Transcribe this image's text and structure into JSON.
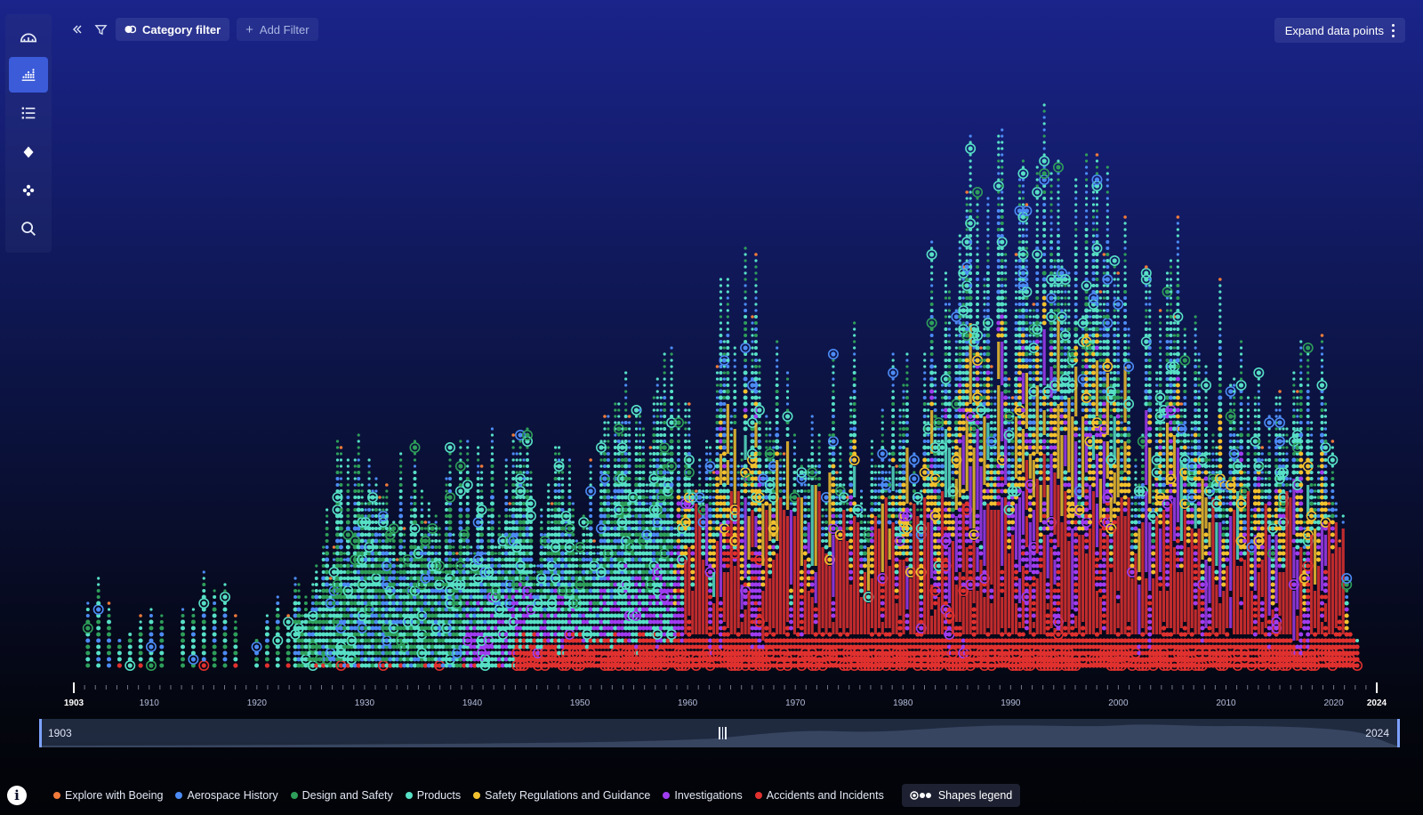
{
  "sidebar": {
    "items": [
      {
        "icon": "dashboard-gauge-icon",
        "name": "sidebar-item-overview",
        "active": false
      },
      {
        "icon": "chart-icon",
        "name": "sidebar-item-timeline",
        "active": true
      },
      {
        "icon": "list-icon",
        "name": "sidebar-item-list",
        "active": false
      },
      {
        "icon": "diamond-icon",
        "name": "sidebar-item-shapes",
        "active": false
      },
      {
        "icon": "cluster-icon",
        "name": "sidebar-item-cluster",
        "active": false
      },
      {
        "icon": "search-icon",
        "name": "sidebar-item-search",
        "active": false
      }
    ]
  },
  "toolbar": {
    "collapse_icon": "chevron-double-left-icon",
    "filter_icon": "funnel-icon",
    "category_filter_label": "Category filter",
    "add_filter_label": "Add Filter"
  },
  "expand_button": {
    "label": "Expand data points",
    "icon": "kebab-menu-icon"
  },
  "timeline": {
    "start_year": 1903,
    "end_year": 2024,
    "tick_labels": [
      "1903",
      "1910",
      "1920",
      "1930",
      "1940",
      "1950",
      "1960",
      "1970",
      "1980",
      "1990",
      "2000",
      "2010",
      "2020",
      "2024"
    ]
  },
  "range_slider": {
    "start_label": "1903",
    "end_label": "2024"
  },
  "legend": {
    "items": [
      {
        "label": "Explore with Boeing",
        "color": "#f07a3a"
      },
      {
        "label": "Aerospace History",
        "color": "#4c8bf5"
      },
      {
        "label": "Design and Safety",
        "color": "#2e9e5a"
      },
      {
        "label": "Products",
        "color": "#57e0c6"
      },
      {
        "label": "Safety Regulations and Guidance",
        "color": "#f2c12e"
      },
      {
        "label": "Investigations",
        "color": "#a03cf0"
      },
      {
        "label": "Accidents and Incidents",
        "color": "#e0312f"
      }
    ],
    "shapes_legend_label": "Shapes legend"
  },
  "info_icon": "info-icon"
}
